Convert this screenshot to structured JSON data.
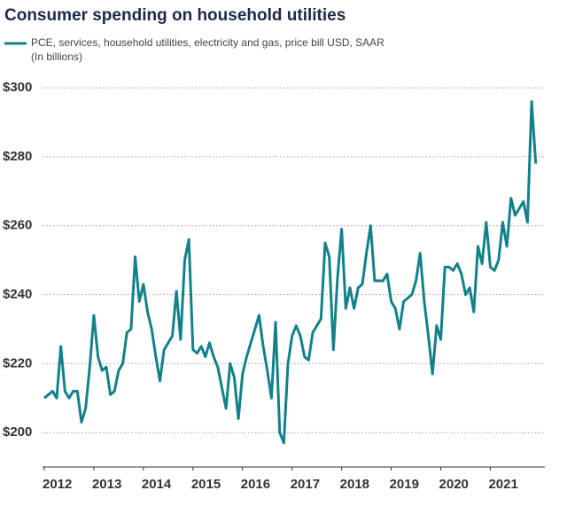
{
  "chart_data": {
    "type": "line",
    "title": "Consumer spending on household utilities",
    "ylabel": "(In billions)",
    "series": [
      {
        "name": "PCE, services, household utilities, electricity and gas, price bill USD, SAAR",
        "color": "#13818a",
        "values": [
          210,
          211,
          212,
          210,
          225,
          212,
          210,
          212,
          212,
          203,
          207,
          219,
          234,
          222,
          218,
          219,
          211,
          212,
          218,
          220,
          229,
          230,
          251,
          238,
          243,
          235,
          230,
          222,
          215,
          224,
          226,
          228,
          241,
          227,
          250,
          256,
          224,
          223,
          225,
          222,
          226,
          222,
          219,
          213,
          207,
          220,
          216,
          204,
          217,
          222,
          226,
          230,
          234,
          225,
          218,
          210,
          232,
          200,
          197,
          220,
          228,
          231,
          228,
          222,
          221,
          229,
          231,
          233,
          255,
          251,
          224,
          245,
          259,
          236,
          242,
          236,
          242,
          243,
          252,
          260,
          244,
          244,
          244,
          246,
          238,
          236,
          230,
          238,
          239,
          240,
          244,
          252,
          238,
          228,
          217,
          231,
          227,
          248,
          248,
          247,
          249,
          246,
          240,
          242,
          235,
          254,
          249,
          261,
          248,
          247,
          250,
          261,
          254,
          268,
          263,
          265,
          267,
          261,
          296,
          278
        ]
      }
    ],
    "xlim": [
      2012,
      2022.1
    ],
    "xticks": [
      2012,
      2013,
      2014,
      2015,
      2016,
      2017,
      2018,
      2019,
      2020,
      2021
    ],
    "ylim": [
      190,
      302
    ],
    "yticks": [
      {
        "value": 200,
        "label": "$200"
      },
      {
        "value": 220,
        "label": "$220"
      },
      {
        "value": 240,
        "label": "$240"
      },
      {
        "value": 260,
        "label": "$260"
      },
      {
        "value": 280,
        "label": "$280"
      },
      {
        "value": 300,
        "label": "$300"
      }
    ],
    "grid": true
  }
}
